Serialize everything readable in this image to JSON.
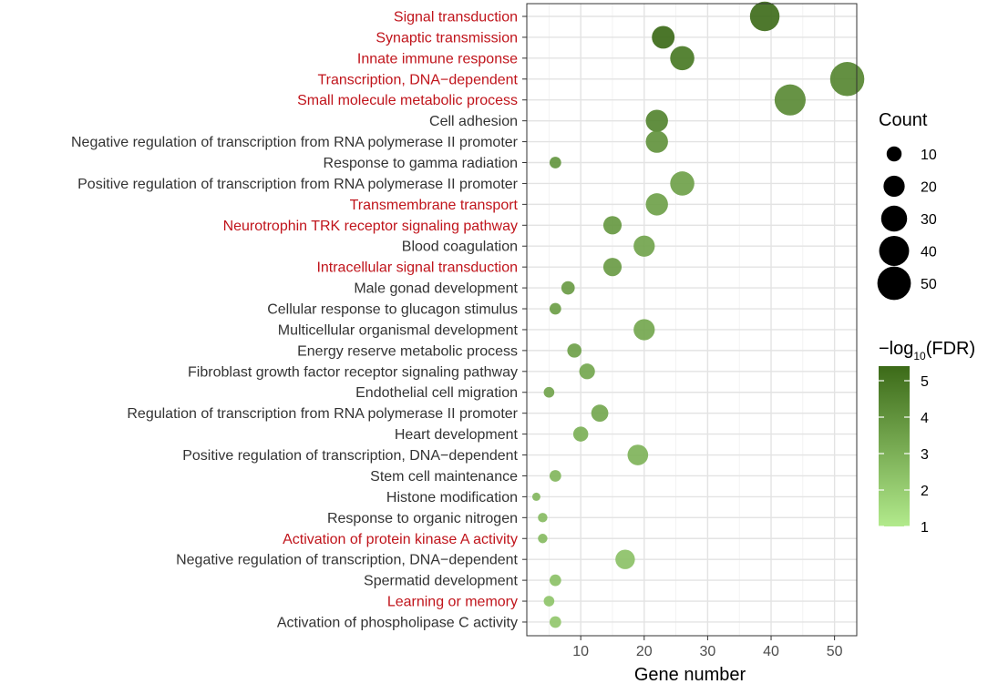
{
  "chart_data": {
    "type": "scatter",
    "title": "",
    "xlabel": "Gene number",
    "ylabel": "",
    "xlim": [
      1.5,
      53.5
    ],
    "x_ticks": [
      10,
      20,
      30,
      40,
      50
    ],
    "grid": true,
    "highlight_color": "#c0141b",
    "default_label_color": "#333333",
    "color_low": "#b2ea8c",
    "color_high": "#3c6a18",
    "categories": [
      {
        "label": "Signal transduction",
        "x": 39,
        "count": 39,
        "neglog10fdr": 5.3,
        "highlight": true
      },
      {
        "label": "Synaptic transmission",
        "x": 23,
        "count": 23,
        "neglog10fdr": 5.4,
        "highlight": true
      },
      {
        "label": "Innate immune response",
        "x": 26,
        "count": 26,
        "neglog10fdr": 4.9,
        "highlight": true
      },
      {
        "label": "Transcription, DNA−dependent",
        "x": 52,
        "count": 52,
        "neglog10fdr": 4.4,
        "highlight": true
      },
      {
        "label": "Small molecule metabolic process",
        "x": 43,
        "count": 43,
        "neglog10fdr": 4.3,
        "highlight": true
      },
      {
        "label": "Cell adhesion",
        "x": 22,
        "count": 22,
        "neglog10fdr": 4.5,
        "highlight": false
      },
      {
        "label": "Negative regulation of transcription from RNA polymerase II promoter",
        "x": 22,
        "count": 22,
        "neglog10fdr": 4.0,
        "highlight": false
      },
      {
        "label": "Response to gamma radiation",
        "x": 6,
        "count": 6,
        "neglog10fdr": 3.9,
        "highlight": false
      },
      {
        "label": "Positive regulation of transcription from RNA polymerase II promoter",
        "x": 26,
        "count": 26,
        "neglog10fdr": 3.5,
        "highlight": false
      },
      {
        "label": "Transmembrane transport",
        "x": 22,
        "count": 22,
        "neglog10fdr": 3.5,
        "highlight": true
      },
      {
        "label": "Neurotrophin TRK receptor signaling pathway",
        "x": 15,
        "count": 15,
        "neglog10fdr": 3.8,
        "highlight": true
      },
      {
        "label": "Blood coagulation",
        "x": 20,
        "count": 20,
        "neglog10fdr": 3.4,
        "highlight": false
      },
      {
        "label": "Intracellular signal transduction",
        "x": 15,
        "count": 15,
        "neglog10fdr": 3.7,
        "highlight": true
      },
      {
        "label": "Male gonad development",
        "x": 8,
        "count": 8,
        "neglog10fdr": 3.7,
        "highlight": false
      },
      {
        "label": "Cellular response to glucagon stimulus",
        "x": 6,
        "count": 6,
        "neglog10fdr": 3.6,
        "highlight": false
      },
      {
        "label": "Multicellular organismal development",
        "x": 20,
        "count": 20,
        "neglog10fdr": 3.3,
        "highlight": false
      },
      {
        "label": "Energy reserve metabolic process",
        "x": 9,
        "count": 9,
        "neglog10fdr": 3.5,
        "highlight": false
      },
      {
        "label": "Fibroblast growth factor receptor signaling pathway",
        "x": 11,
        "count": 11,
        "neglog10fdr": 3.3,
        "highlight": false
      },
      {
        "label": "Endothelial cell migration",
        "x": 5,
        "count": 5,
        "neglog10fdr": 3.4,
        "highlight": false
      },
      {
        "label": "Regulation of transcription from RNA polymerase II promoter",
        "x": 13,
        "count": 13,
        "neglog10fdr": 3.3,
        "highlight": false
      },
      {
        "label": "Heart development",
        "x": 10,
        "count": 10,
        "neglog10fdr": 3.0,
        "highlight": false
      },
      {
        "label": "Positive regulation of transcription, DNA−dependent",
        "x": 19,
        "count": 19,
        "neglog10fdr": 2.9,
        "highlight": false
      },
      {
        "label": "Stem cell maintenance",
        "x": 6,
        "count": 6,
        "neglog10fdr": 2.8,
        "highlight": false
      },
      {
        "label": "Histone modification",
        "x": 3,
        "count": 3,
        "neglog10fdr": 2.8,
        "highlight": false
      },
      {
        "label": "Response to organic nitrogen",
        "x": 4,
        "count": 4,
        "neglog10fdr": 2.6,
        "highlight": false
      },
      {
        "label": "Activation of protein kinase A activity",
        "x": 4,
        "count": 4,
        "neglog10fdr": 2.6,
        "highlight": true
      },
      {
        "label": "Negative regulation of transcription, DNA−dependent",
        "x": 17,
        "count": 17,
        "neglog10fdr": 2.4,
        "highlight": false
      },
      {
        "label": "Spermatid development",
        "x": 6,
        "count": 6,
        "neglog10fdr": 2.4,
        "highlight": false
      },
      {
        "label": "Learning or memory",
        "x": 5,
        "count": 5,
        "neglog10fdr": 2.3,
        "highlight": true
      },
      {
        "label": "Activation of phospholipase C activity",
        "x": 6,
        "count": 6,
        "neglog10fdr": 2.2,
        "highlight": false
      }
    ],
    "size_legend": {
      "title": "Count",
      "values": [
        10,
        20,
        30,
        40,
        50
      ]
    },
    "color_legend": {
      "title_prefix": "−log",
      "title_sub": "10",
      "title_suffix": "(FDR)",
      "range": [
        1,
        5.4
      ],
      "ticks": [
        1,
        2,
        3,
        4,
        5
      ]
    }
  }
}
